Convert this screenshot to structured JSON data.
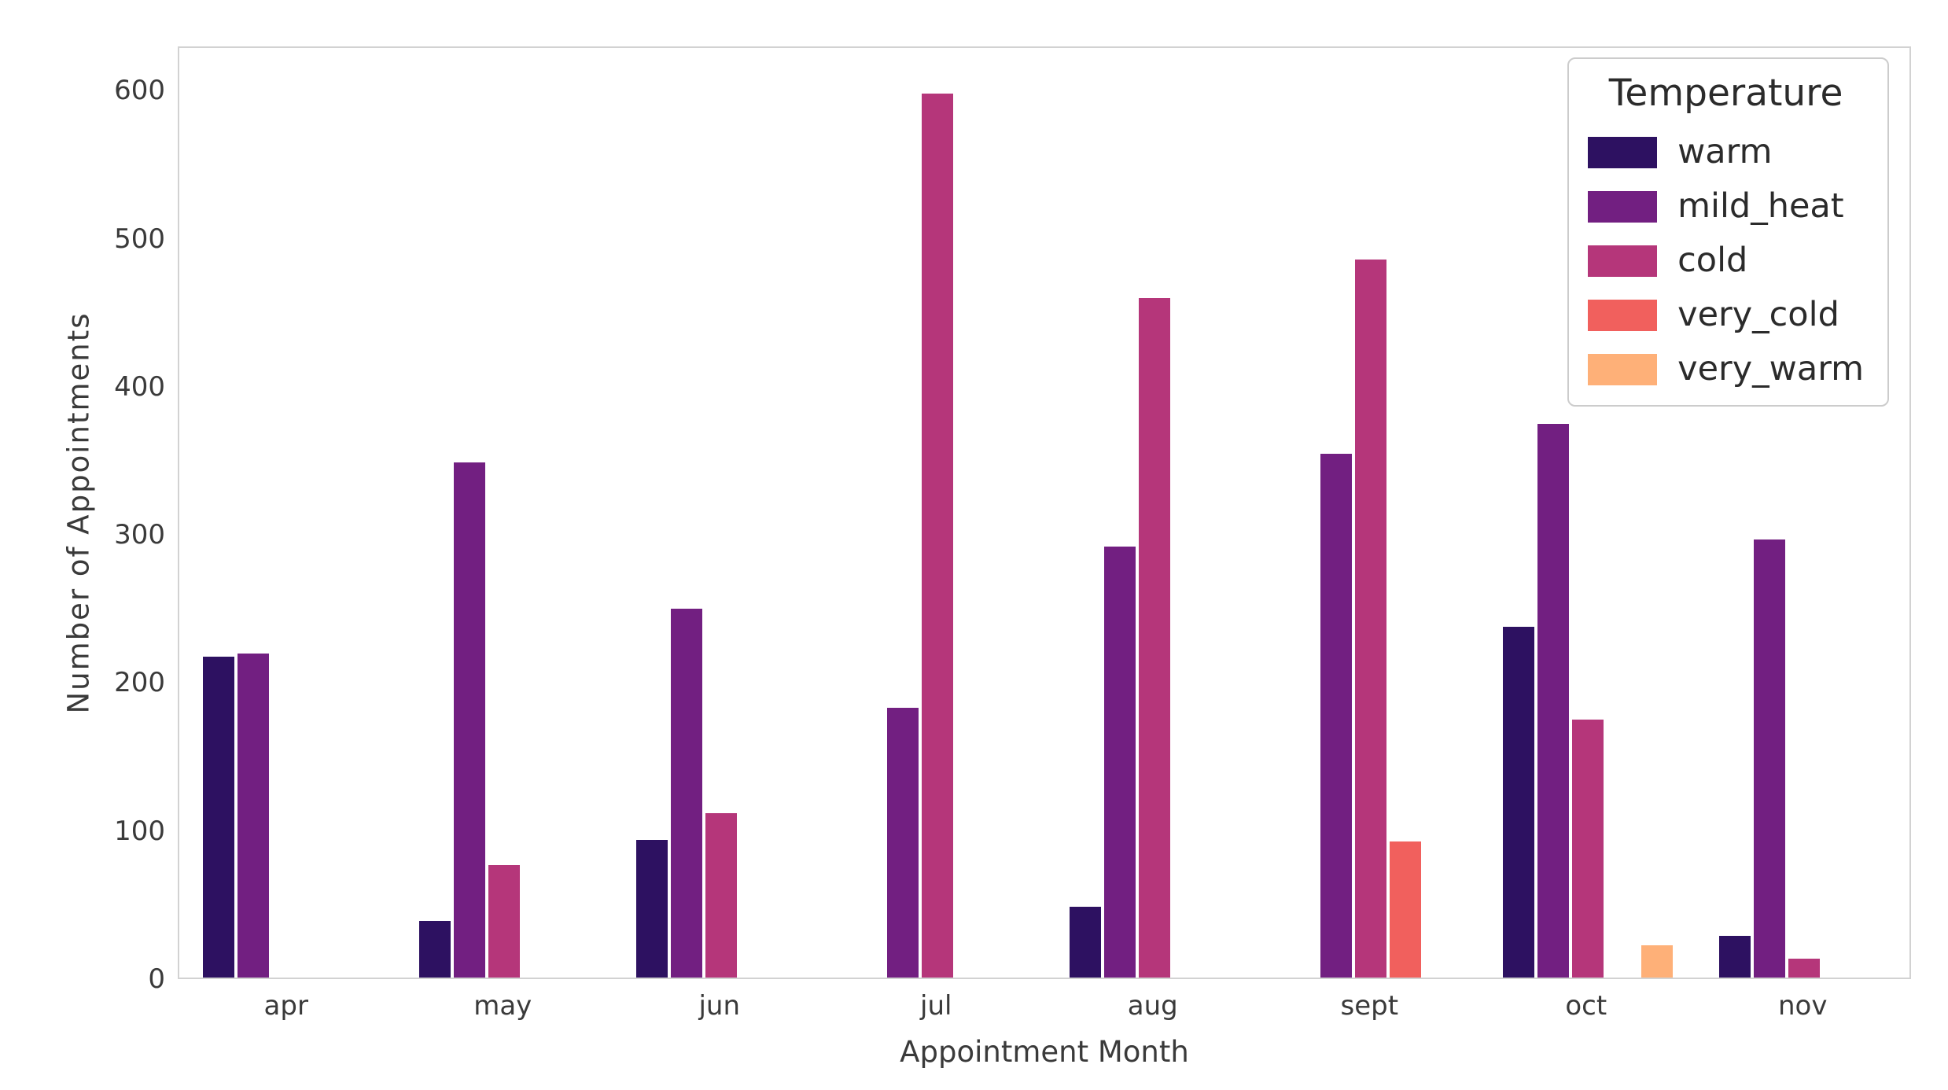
{
  "figure": {
    "xlabel": "Appointment Month",
    "ylabel": "Number of Appointments"
  },
  "legend": {
    "title": "Temperature",
    "entries": [
      "warm",
      "mild_heat",
      "cold",
      "very_cold",
      "very_warm"
    ]
  },
  "chart_data": {
    "type": "bar",
    "title": "",
    "xlabel": "Appointment Month",
    "ylabel": "Number of Appointments",
    "legend_title": "Temperature",
    "legend_position": "upper right",
    "grid": false,
    "background": "#ffffff",
    "axes_edge_color": "#d2d2d2",
    "text_color": "#3a3a3a",
    "categories": [
      "apr",
      "may",
      "jun",
      "jul",
      "aug",
      "sept",
      "oct",
      "nov"
    ],
    "yticks": [
      0,
      100,
      200,
      300,
      400,
      500,
      600
    ],
    "ylim": [
      0,
      630
    ],
    "series": [
      {
        "name": "warm",
        "color": "#2d1161",
        "values": [
          217,
          38,
          93,
          null,
          48,
          null,
          237,
          28
        ]
      },
      {
        "name": "mild_heat",
        "color": "#721f81",
        "values": [
          219,
          348,
          249,
          182,
          291,
          354,
          374,
          296
        ]
      },
      {
        "name": "cold",
        "color": "#b5367a",
        "values": [
          null,
          76,
          111,
          597,
          459,
          485,
          174,
          13
        ]
      },
      {
        "name": "very_cold",
        "color": "#f1605d",
        "values": [
          null,
          null,
          null,
          null,
          null,
          92,
          null,
          null
        ]
      },
      {
        "name": "very_warm",
        "color": "#feb078",
        "values": [
          null,
          null,
          null,
          null,
          null,
          null,
          22,
          null
        ]
      }
    ]
  }
}
